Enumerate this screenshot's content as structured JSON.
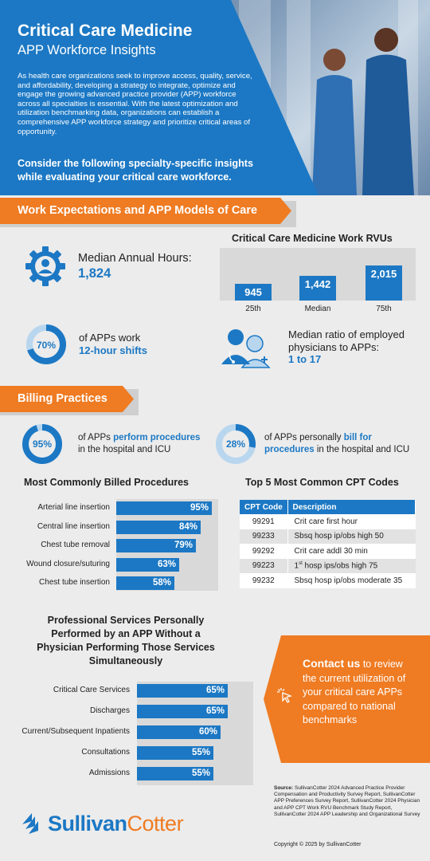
{
  "hero": {
    "title": "Critical Care Medicine",
    "subtitle": "APP Workforce Insights",
    "intro": "As health care organizations seek to improve access, quality, service, and affordability, developing a strategy to integrate, optimize and engage the growing advanced practice provider (APP) workforce across all specialties is essential. With the latest optimization and utilization benchmarking data, organizations can establish a comprehensive APP workforce strategy and prioritize critical areas of opportunity.",
    "consider": "Consider the following specialty-specific insights while evaluating your critical care workforce."
  },
  "work": {
    "banner": "Work Expectations and APP Models of Care",
    "hours_label": "Median Annual Hours:",
    "hours_value": "1,824",
    "rvu_title": "Critical Care Medicine Work RVUs",
    "shifts_pct": "70%",
    "shifts_pct_value": 70,
    "shifts_text": "of APPs work",
    "shifts_bold": "12-hour shifts",
    "ratio_text": "Median ratio of employed physicians to APPs:",
    "ratio_value": "1 to 17"
  },
  "billing": {
    "banner": "Billing Practices",
    "perform_pct": "95%",
    "perform_pct_value": 95,
    "perform_pre": "of APPs ",
    "perform_bold": "perform procedures",
    "perform_post": "in the hospital and ICU",
    "bill_pct": "28%",
    "bill_pct_value": 28,
    "bill_pre": "of APPs personally ",
    "bill_bold1": "bill for",
    "bill_bold2": "procedures",
    "bill_post": " in the hospital and ICU",
    "procedures_title": "Most Commonly Billed Procedures",
    "cpt_title": "Top 5 Most Common CPT Codes",
    "cpt_headers": [
      "CPT Code",
      "Description"
    ],
    "cpt_rows": [
      {
        "code": "99291",
        "desc": "Crit care first hour"
      },
      {
        "code": "99233",
        "desc": "Sbsq hosp ip/obs high 50"
      },
      {
        "code": "99292",
        "desc": "Crit care addl 30 min"
      },
      {
        "code": "99223",
        "desc_pre": "1",
        "desc_sup": "st",
        "desc_post": " hosp ips/obs high 75"
      },
      {
        "code": "99232",
        "desc": "Sbsq hosp ip/obs moderate 35"
      }
    ],
    "services_title": "Professional Services Personally Performed by an APP Without a Physician Performing Those Services Simultaneously"
  },
  "contact": {
    "bold": "Contact us",
    "text": " to review the current utilization of your critical care APPs compared to national benchmarks"
  },
  "footer": {
    "logo_a": "Sullivan",
    "logo_b": "Cotter",
    "source_label": "Source:",
    "source": " SullivanCotter 2024 Advanced Practice Provider Compensation and Productivity Survey Report, SullivanCotter APP Preferences Survey Report, SullivanCotter 2024 Physician and APP CPT Work RVU Benchmark Study Report, SullivanCotter 2024 APP Leadership and Organizational Survey",
    "copyright": "Copyright © 2025 by SullivanCotter"
  },
  "colors": {
    "primary": "#1c78c4",
    "accent": "#ef7b22",
    "background": "#ececec"
  },
  "chart_data": [
    {
      "type": "bar",
      "title": "Critical Care Medicine Work RVUs",
      "categories": [
        "25th",
        "Median",
        "75th"
      ],
      "values": [
        945,
        1442,
        2015
      ],
      "value_labels": [
        "945",
        "1,442",
        "2,015"
      ]
    },
    {
      "type": "bar",
      "orientation": "horizontal",
      "title": "Most Commonly Billed Procedures",
      "categories": [
        "Arterial line insertion",
        "Central line insertion",
        "Chest tube removal",
        "Wound closure/suturing",
        "Chest tube insertion"
      ],
      "values": [
        95,
        84,
        79,
        63,
        58
      ],
      "value_labels": [
        "95%",
        "84%",
        "79%",
        "63%",
        "58%"
      ],
      "xlim": [
        0,
        100
      ]
    },
    {
      "type": "bar",
      "orientation": "horizontal",
      "title": "Professional Services Personally Performed by an APP Without a Physician Performing Those Services Simultaneously",
      "categories": [
        "Critical Care Services",
        "Discharges",
        "Current/Subsequent Inpatients",
        "Consultations",
        "Admissions"
      ],
      "values": [
        65,
        65,
        60,
        55,
        55
      ],
      "value_labels": [
        "65%",
        "65%",
        "60%",
        "55%",
        "55%"
      ],
      "xlim": [
        0,
        100
      ]
    }
  ]
}
